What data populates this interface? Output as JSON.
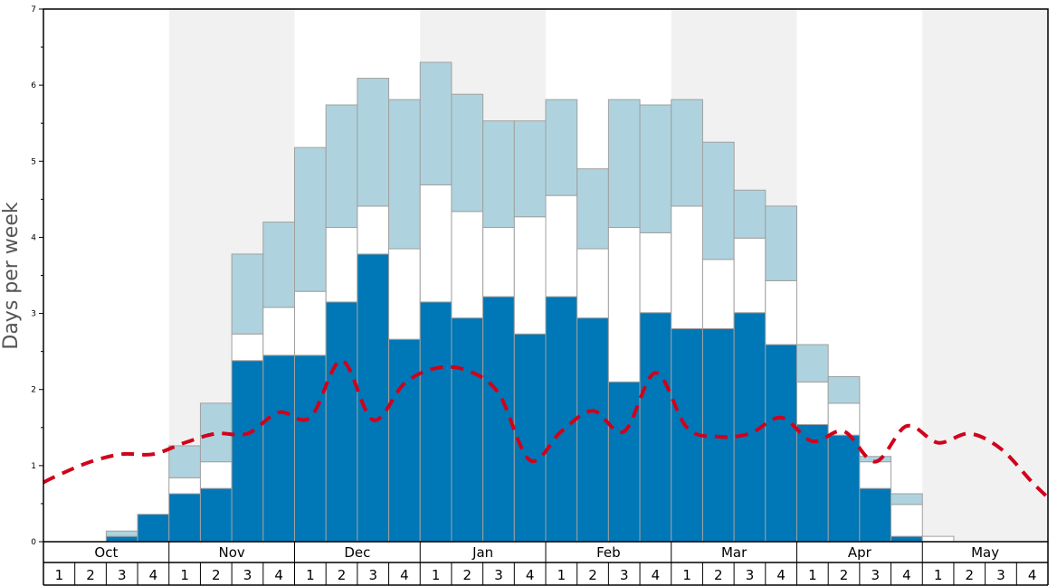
{
  "chart_data": {
    "type": "bar",
    "ylabel": "Days per week",
    "ylim": [
      0,
      7
    ],
    "y_ticks": [
      "0",
      "1",
      "2",
      "3",
      "4",
      "5",
      "6",
      "7"
    ],
    "months": [
      "Oct",
      "Nov",
      "Dec",
      "Jan",
      "Feb",
      "Mar",
      "Apr",
      "May"
    ],
    "weeks": [
      "1",
      "2",
      "3",
      "4"
    ],
    "stack_colors": [
      "#0077b6",
      "#ffffff",
      "#aed3df"
    ],
    "line_color": "#d0021b",
    "shaded_months": [
      "Nov",
      "Jan",
      "Mar",
      "May"
    ],
    "series": [
      {
        "values": [
          0,
          0,
          0.07,
          0.36,
          0.63,
          0.7,
          2.38,
          2.45,
          2.45,
          3.15,
          3.78,
          2.66,
          3.15,
          2.94,
          3.22,
          2.73,
          3.22,
          2.94,
          2.1,
          3.01,
          2.8,
          2.8,
          3.01,
          2.59,
          1.54,
          1.4,
          0.7,
          0.07,
          0,
          0,
          0,
          0
        ]
      },
      {
        "values": [
          0,
          0,
          0,
          0,
          0.21,
          0.35,
          0.35,
          0.63,
          0.84,
          0.98,
          0.63,
          1.19,
          1.54,
          1.4,
          0.91,
          1.54,
          1.33,
          0.91,
          2.03,
          1.05,
          1.61,
          0.91,
          0.98,
          0.84,
          0.56,
          0.42,
          0.35,
          0.42,
          0.07,
          0,
          0,
          0
        ]
      },
      {
        "values": [
          0,
          0,
          0.07,
          0,
          0.42,
          0.77,
          1.05,
          1.12,
          1.89,
          1.61,
          1.68,
          1.96,
          1.61,
          1.54,
          1.4,
          1.26,
          1.26,
          1.05,
          1.68,
          1.68,
          1.4,
          1.54,
          0.63,
          0.98,
          0.49,
          0.35,
          0.07,
          0.14,
          0,
          0,
          0,
          0
        ]
      }
    ],
    "line_values": [
      0.88,
      1.05,
      1.15,
      1.15,
      1.3,
      1.42,
      1.42,
      1.7,
      1.63,
      2.38,
      1.6,
      2.08,
      2.28,
      2.25,
      1.95,
      1.07,
      1.45,
      1.72,
      1.45,
      2.22,
      1.5,
      1.38,
      1.42,
      1.63,
      1.32,
      1.45,
      1.05,
      1.52,
      1.3,
      1.42,
      1.22,
      0.78
    ]
  }
}
